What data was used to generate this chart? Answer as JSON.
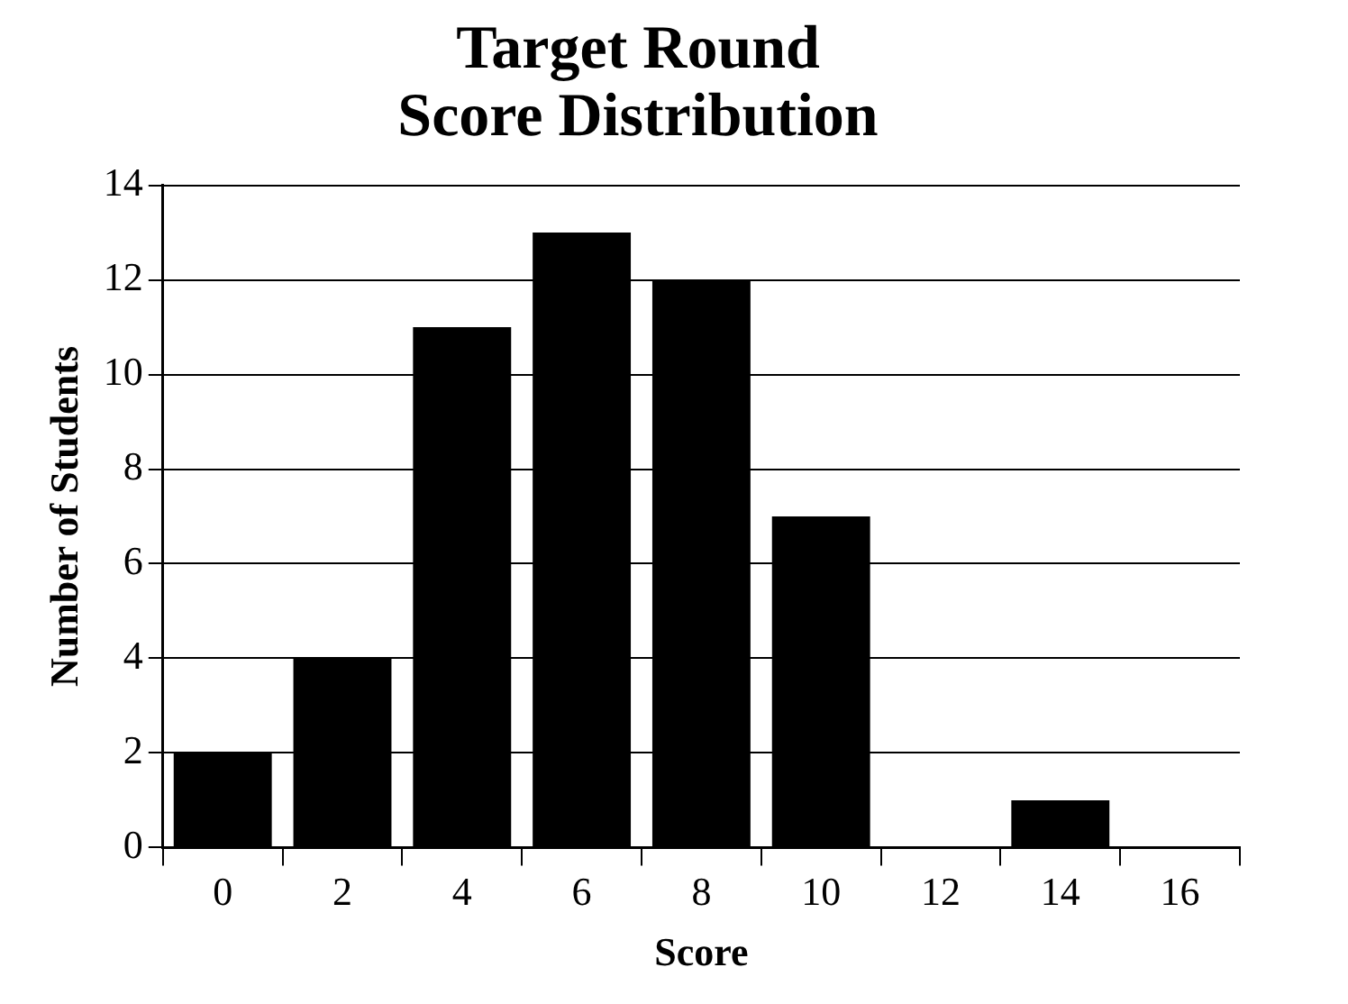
{
  "chart_data": {
    "type": "bar",
    "title": "Target Round\nScore Distribution",
    "xlabel": "Score",
    "ylabel": "Number of Students",
    "categories": [
      "0",
      "2",
      "4",
      "6",
      "8",
      "10",
      "12",
      "14",
      "16"
    ],
    "values": [
      2,
      4,
      11,
      13,
      12,
      7,
      0,
      1,
      0
    ],
    "color": "#000000",
    "ylim": [
      0,
      14
    ],
    "yticks": [
      0,
      2,
      4,
      6,
      8,
      10,
      12,
      14
    ],
    "grid": "y",
    "legend": false
  }
}
